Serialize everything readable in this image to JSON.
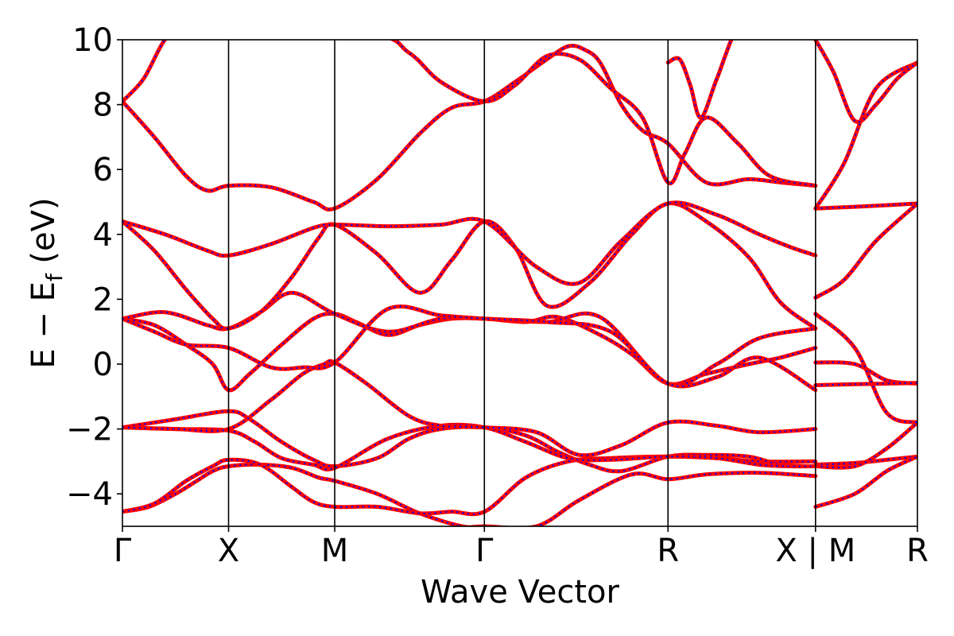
{
  "chart_data": {
    "type": "line",
    "title": "",
    "xlabel": "Wave Vector",
    "ylabel": "E − E",
    "ylabel_sub": "f",
    "ylabel_unit": " (eV)",
    "ylim": [
      -5,
      10
    ],
    "xlim": [
      0,
      7.49
    ],
    "grid": false,
    "legend": "none",
    "yticks": [
      -4,
      -2,
      0,
      2,
      4,
      6,
      8,
      10
    ],
    "ytick_labels": [
      "−4",
      "−2",
      "0",
      "2",
      "4",
      "6",
      "8",
      "10"
    ],
    "high_symmetry_points": [
      {
        "label": "Γ",
        "x": 0.0
      },
      {
        "label": "X",
        "x": 1.0
      },
      {
        "label": "M",
        "x": 2.0
      },
      {
        "label": "Γ",
        "x": 3.41
      },
      {
        "label": "R",
        "x": 5.14
      },
      {
        "label": "X | M",
        "x": 6.53
      },
      {
        "label": "R",
        "x": 7.49
      }
    ],
    "line_color": "#ff0000",
    "overlay_color": "#0000ff",
    "series": [
      {
        "color": "#ff0000",
        "x": [
          0,
          0.25,
          0.5,
          0.7,
          0.85,
          1.0,
          1.3,
          1.6,
          1.85,
          2.0,
          2.4,
          2.8,
          3.2,
          3.41,
          3.9,
          4.3,
          4.8,
          5.14,
          5.5,
          6.0,
          6.53,
          6.53,
          6.9,
          7.2,
          7.49
        ],
        "y": [
          -4.55,
          -4.4,
          -4.0,
          -3.6,
          -3.3,
          -3.15,
          -3.1,
          -3.2,
          -3.5,
          -3.6,
          -4.0,
          -4.6,
          -5.0,
          -5.0,
          -5.0,
          -4.2,
          -3.4,
          -3.55,
          -3.4,
          -3.35,
          -3.45,
          -3.1,
          -3.05,
          -2.95,
          -2.85
        ]
      },
      {
        "color": "#ff0000",
        "x": [
          0,
          0.3,
          0.6,
          0.85,
          1.0,
          1.3,
          1.6,
          1.8,
          2.0,
          2.4,
          2.8,
          3.1,
          3.41,
          3.8,
          4.2,
          4.6,
          5.14,
          5.6,
          6.0,
          6.53,
          6.53,
          6.9,
          7.2,
          7.49
        ],
        "y": [
          -4.55,
          -4.3,
          -3.6,
          -3.15,
          -2.95,
          -3.1,
          -3.8,
          -4.25,
          -4.4,
          -4.4,
          -4.6,
          -4.55,
          -4.55,
          -3.5,
          -3.0,
          -2.9,
          -2.85,
          -2.9,
          -3.0,
          -3.0,
          -4.4,
          -4.0,
          -3.3,
          -2.85
        ]
      },
      {
        "color": "#ff0000",
        "x": [
          0,
          0.5,
          1.0,
          1.2,
          1.5,
          1.8,
          2.0,
          2.4,
          2.7,
          3.0,
          3.41,
          3.8,
          4.1,
          4.4,
          4.7,
          5.14,
          5.5,
          5.9,
          6.2,
          6.53,
          6.53,
          6.9,
          7.2,
          7.49
        ],
        "y": [
          -1.95,
          -1.7,
          -1.45,
          -1.7,
          -2.4,
          -2.95,
          -3.15,
          -2.9,
          -2.3,
          -2.0,
          -1.95,
          -2.2,
          -2.7,
          -3.1,
          -3.3,
          -2.85,
          -2.8,
          -2.85,
          -3.1,
          -3.15,
          -3.15,
          -3.15,
          -2.6,
          -1.8
        ]
      },
      {
        "color": "#ff0000",
        "x": [
          0,
          0.5,
          1.0,
          1.25,
          1.5,
          1.8,
          2.0,
          2.5,
          3.0,
          3.41,
          3.8,
          4.2,
          4.6,
          5.14,
          5.6,
          6.0,
          6.3,
          6.53
        ],
        "y": [
          -1.95,
          -2.0,
          -2.05,
          -2.4,
          -2.9,
          -3.1,
          -3.2,
          -2.3,
          -1.9,
          -1.95,
          -2.4,
          -2.9,
          -2.95,
          -2.85,
          -2.9,
          -3.1,
          -3.15,
          -3.15
        ]
      },
      {
        "color": "#ff0000",
        "x": [
          0,
          0.5,
          1.0,
          1.4,
          1.7,
          1.9,
          2.0,
          2.3,
          2.7,
          3.0,
          3.41,
          3.9,
          4.3,
          4.7,
          5.14,
          5.6,
          6.0,
          6.53,
          6.53,
          6.9,
          7.2,
          7.49
        ],
        "y": [
          -1.95,
          -2.0,
          -2.0,
          -1.1,
          -0.3,
          0.0,
          0.05,
          -0.6,
          -1.6,
          -1.9,
          -1.95,
          -2.1,
          -2.8,
          -2.5,
          -1.8,
          -1.9,
          -2.1,
          -2.0,
          0.05,
          0.0,
          -0.5,
          -0.6
        ]
      },
      {
        "color": "#ff0000",
        "x": [
          0,
          0.3,
          0.6,
          0.85,
          1.0,
          1.2,
          1.5,
          1.8,
          2.0,
          2.2,
          2.5,
          2.8,
          3.1,
          3.41,
          3.8,
          4.1,
          4.5,
          4.8,
          5.14,
          5.5,
          5.9,
          6.2,
          6.53
        ],
        "y": [
          1.4,
          1.2,
          0.6,
          0.0,
          -0.8,
          -0.3,
          0.6,
          1.4,
          1.55,
          1.3,
          0.9,
          1.2,
          1.4,
          1.4,
          1.3,
          1.45,
          0.9,
          0.3,
          -0.6,
          -0.3,
          0.0,
          0.2,
          0.5
        ]
      },
      {
        "color": "#ff0000",
        "x": [
          0,
          0.4,
          0.8,
          1.0,
          1.3,
          1.6,
          2.0,
          2.5,
          3.0,
          3.41,
          4.0,
          4.5,
          5.14,
          5.6,
          6.0,
          6.53,
          6.53,
          6.9,
          7.2,
          7.49
        ],
        "y": [
          1.4,
          1.6,
          1.2,
          1.1,
          1.6,
          2.2,
          1.55,
          1.0,
          1.4,
          1.4,
          1.3,
          1.45,
          -0.6,
          0.0,
          0.8,
          1.1,
          -0.65,
          -0.62,
          -0.6,
          -0.58
        ]
      },
      {
        "color": "#ff0000",
        "x": [
          0,
          0.3,
          0.6,
          1.0,
          1.4,
          1.7,
          2.0,
          2.5,
          3.0,
          3.41,
          4.0,
          4.6,
          5.14,
          5.6,
          6.0,
          6.53,
          6.53,
          6.9,
          7.2,
          7.49
        ],
        "y": [
          1.4,
          1.0,
          0.6,
          0.5,
          -0.1,
          -0.1,
          0.05,
          1.7,
          1.5,
          1.4,
          1.3,
          1.0,
          -0.6,
          -0.4,
          0.2,
          -0.8,
          1.55,
          0.5,
          -1.5,
          -1.8
        ]
      },
      {
        "color": "#ff0000",
        "x": [
          0,
          0.3,
          0.6,
          0.85,
          1.0,
          1.3,
          1.6,
          1.85,
          2.0,
          2.4,
          2.8,
          3.1,
          3.41,
          3.7,
          4.0,
          4.4,
          4.8,
          5.14,
          5.5,
          5.9,
          6.2,
          6.53,
          6.53,
          6.8,
          7.1,
          7.49
        ],
        "y": [
          4.4,
          3.5,
          2.3,
          1.4,
          1.1,
          1.6,
          2.7,
          3.9,
          4.3,
          3.4,
          2.2,
          3.2,
          4.4,
          3.6,
          1.8,
          2.5,
          4.0,
          4.95,
          4.4,
          3.3,
          1.9,
          1.1,
          2.05,
          2.6,
          3.8,
          4.95
        ]
      },
      {
        "color": "#ff0000",
        "x": [
          0,
          0.4,
          0.8,
          1.0,
          1.4,
          1.8,
          2.0,
          2.5,
          3.0,
          3.41,
          3.9,
          4.3,
          4.7,
          5.14,
          5.6,
          6.0,
          6.3,
          6.53,
          6.53,
          6.9,
          7.2,
          7.49
        ],
        "y": [
          4.4,
          4.0,
          3.5,
          3.35,
          3.7,
          4.2,
          4.3,
          4.25,
          4.3,
          4.4,
          3.0,
          2.5,
          3.8,
          4.95,
          4.6,
          4.0,
          3.6,
          3.35,
          4.8,
          4.85,
          4.9,
          4.95
        ]
      },
      {
        "color": "#ff0000",
        "x": [
          0,
          0.3,
          0.6,
          0.8,
          1.0,
          1.4,
          1.8,
          2.0,
          2.4,
          2.8,
          3.1,
          3.41,
          3.7,
          4.0,
          4.2,
          4.35,
          4.5,
          4.7,
          4.9,
          5.14,
          5.5,
          5.9,
          6.2,
          6.53,
          6.53,
          6.8,
          7.1,
          7.49
        ],
        "y": [
          8.1,
          7.0,
          5.8,
          5.35,
          5.5,
          5.45,
          5.0,
          4.8,
          5.7,
          7.1,
          7.9,
          8.1,
          8.7,
          9.4,
          9.8,
          9.7,
          9.3,
          8.0,
          7.2,
          6.8,
          5.6,
          5.7,
          5.6,
          5.5,
          4.8,
          6.2,
          8.5,
          9.3
        ]
      },
      {
        "color": "#ff0000",
        "x": [
          0,
          0.2,
          0.4,
          0.6,
          2.3,
          2.7,
          3.0,
          3.41,
          3.7,
          4.0,
          4.3,
          4.6,
          4.9,
          5.14,
          5.3,
          5.5,
          5.8,
          6.1,
          6.53
        ],
        "y": [
          8.1,
          8.8,
          10.0,
          10.5,
          10.2,
          9.6,
          8.7,
          8.1,
          8.6,
          9.5,
          9.4,
          8.5,
          7.6,
          5.6,
          6.5,
          7.6,
          6.8,
          5.8,
          5.5
        ]
      },
      {
        "color": "#ff0000",
        "x": [
          5.14,
          5.25,
          5.35,
          5.45,
          5.6,
          5.8,
          6.0,
          6.2,
          6.53,
          6.53,
          6.7,
          6.9,
          7.1,
          7.3,
          7.49
        ],
        "y": [
          9.3,
          9.4,
          8.6,
          7.6,
          8.8,
          10.4,
          10.5,
          10.5,
          10.5,
          10.0,
          9.0,
          7.5,
          8.0,
          8.8,
          9.3
        ]
      }
    ]
  }
}
